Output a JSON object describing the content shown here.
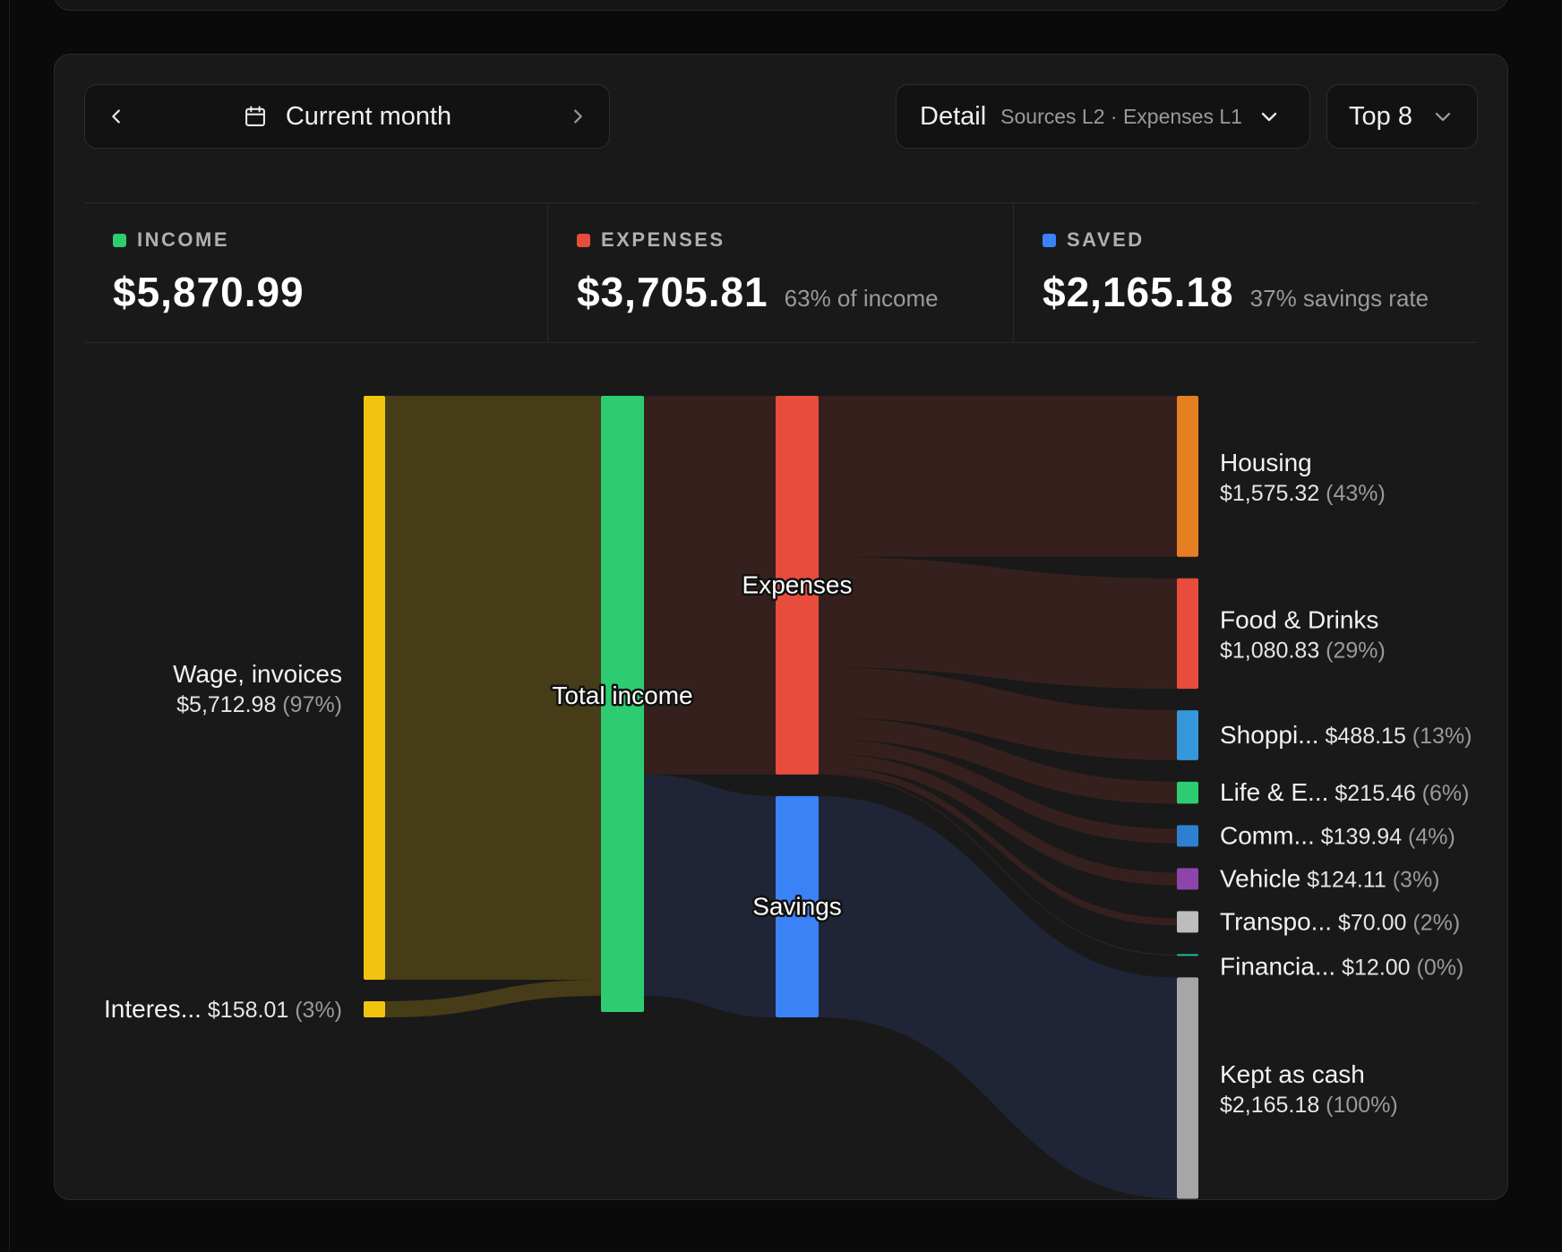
{
  "period": {
    "label": "Current month"
  },
  "detail": {
    "label": "Detail",
    "value": "Sources L2 · Expenses L1"
  },
  "top": {
    "label": "Top 8"
  },
  "stats": {
    "income": {
      "label": "INCOME",
      "value": "$5,870.99",
      "note": "",
      "color": "#2ecc71"
    },
    "expenses": {
      "label": "EXPENSES",
      "value": "$3,705.81",
      "note": "63% of income",
      "color": "#e74c3c"
    },
    "saved": {
      "label": "SAVED",
      "value": "$2,165.18",
      "note": "37% savings rate",
      "color": "#3b82f6"
    }
  },
  "sankey": {
    "sources": [
      {
        "name": "Wage, invoices",
        "amount": "$5,712.98",
        "pct": "(97%)",
        "value": 5712.98,
        "color": "#f1c40f"
      },
      {
        "name": "Interes...",
        "amount": "$158.01",
        "pct": "(3%)",
        "value": 158.01,
        "color": "#f1c40f"
      }
    ],
    "total": {
      "name": "Total income",
      "value": 5870.99,
      "color": "#2ecc71"
    },
    "splits": [
      {
        "name": "Expenses",
        "value": 3705.81,
        "color": "#e74c3c"
      },
      {
        "name": "Savings",
        "value": 2165.18,
        "color": "#3b82f6"
      }
    ],
    "targets": [
      {
        "name": "Housing",
        "amount": "$1,575.32",
        "pct": "(43%)",
        "value": 1575.32,
        "color": "#e67e22",
        "parent": "Expenses",
        "stacked": true
      },
      {
        "name": "Food & Drinks",
        "amount": "$1,080.83",
        "pct": "(29%)",
        "value": 1080.83,
        "color": "#e74c3c",
        "parent": "Expenses",
        "stacked": true
      },
      {
        "name": "Shoppi...",
        "amount": "$488.15",
        "pct": "(13%)",
        "value": 488.15,
        "color": "#3498db",
        "parent": "Expenses",
        "stacked": false
      },
      {
        "name": "Life & E...",
        "amount": "$215.46",
        "pct": "(6%)",
        "value": 215.46,
        "color": "#2ecc71",
        "parent": "Expenses",
        "stacked": false
      },
      {
        "name": "Comm...",
        "amount": "$139.94",
        "pct": "(4%)",
        "value": 139.94,
        "color": "#2f7fd1",
        "parent": "Expenses",
        "stacked": false
      },
      {
        "name": "Vehicle",
        "amount": "$124.11",
        "pct": "(3%)",
        "value": 124.11,
        "color": "#8e44ad",
        "parent": "Expenses",
        "stacked": false
      },
      {
        "name": "Transpo...",
        "amount": "$70.00",
        "pct": "(2%)",
        "value": 70.0,
        "color": "#bdbdbd",
        "parent": "Expenses",
        "stacked": false
      },
      {
        "name": "Financia...",
        "amount": "$12.00",
        "pct": "(0%)",
        "value": 12.0,
        "color": "#1abc9c",
        "parent": "Expenses",
        "stacked": false
      },
      {
        "name": "Kept as cash",
        "amount": "$2,165.18",
        "pct": "(100%)",
        "value": 2165.18,
        "color": "#a6a6a6",
        "parent": "Savings",
        "stacked": true
      }
    ]
  }
}
